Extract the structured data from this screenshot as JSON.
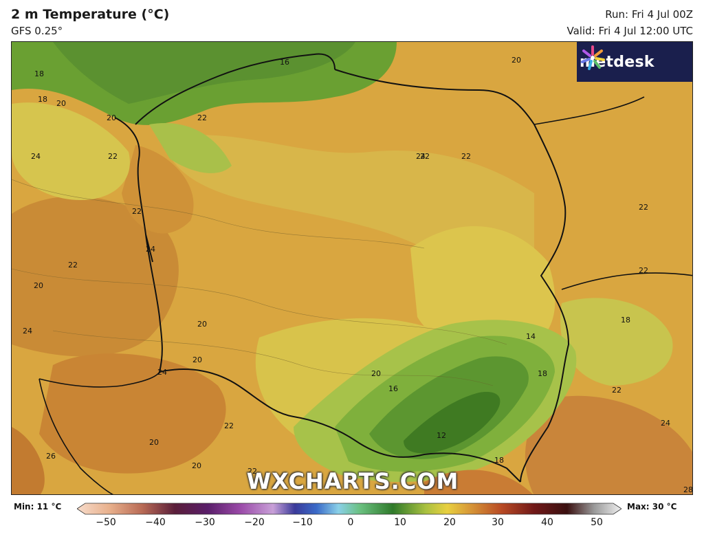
{
  "header": {
    "title": "2 m Temperature (°C)",
    "model": "GFS 0.25°",
    "run": "Run: Fri 4 Jul 00Z",
    "valid": "Valid: Fri 4 Jul 12:00 UTC"
  },
  "logo": {
    "name": "metdesk",
    "icon": "metdesk-flower-icon"
  },
  "watermark": "WXCHARTS.COM",
  "legend": {
    "min": "Min: 11 °C",
    "max": "Max: 30 °C",
    "ticks": [
      "−50",
      "−40",
      "−30",
      "−20",
      "−10",
      "0",
      "10",
      "20",
      "30",
      "40",
      "50"
    ]
  },
  "map_labels": [
    "16",
    "20",
    "18",
    "18",
    "20",
    "22",
    "20",
    "22",
    "24",
    "24",
    "22",
    "22",
    "24",
    "22",
    "20",
    "24",
    "26",
    "20",
    "20",
    "24",
    "16",
    "12",
    "14",
    "18",
    "20",
    "22",
    "22",
    "22",
    "18",
    "22",
    "24",
    "18",
    "28",
    "20",
    "22",
    "22",
    "20"
  ],
  "colors": {
    "green_dark": "#3f7a22",
    "green_mid": "#6aa032",
    "yellow_green": "#b8c845",
    "yellow": "#dccb4a",
    "orange": "#d6a03c",
    "orange_dark": "#c97f32",
    "sea": "#5e9a32",
    "border": "#111111"
  }
}
